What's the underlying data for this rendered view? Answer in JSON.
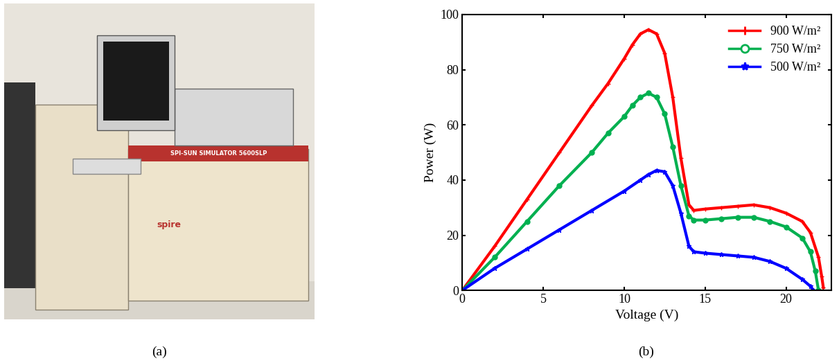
{
  "panel_labels": [
    "(a)",
    "(b)"
  ],
  "photo": {
    "texts": [
      "SPI-SUN SIMULATOR 5600SLP",
      "spire"
    ]
  },
  "chart_data": {
    "type": "line",
    "x_label": "Voltage (V)",
    "y_label": "Power (W)",
    "xlim": [
      0,
      22.8
    ],
    "xticks": [
      0,
      5,
      10,
      15,
      20
    ],
    "ylim": [
      0,
      100
    ],
    "yticks": [
      0,
      20,
      40,
      60,
      80,
      100
    ],
    "legend": "upper right",
    "grid": false,
    "series": [
      {
        "name": "900 W/m²",
        "color": "#ff0000",
        "marker": "plus",
        "line_style": "solid",
        "x": [
          0,
          2,
          4,
          6,
          8,
          9,
          10,
          10.5,
          11,
          11.5,
          12,
          12.5,
          13,
          13.5,
          14,
          14.3,
          15,
          16,
          17,
          18,
          19,
          20,
          21,
          21.5,
          22,
          22.2,
          22.3
        ],
        "values": [
          0,
          16,
          33,
          50,
          67,
          75,
          84,
          89,
          93,
          94.5,
          93,
          86,
          70,
          48,
          31,
          29,
          29.5,
          30,
          30.5,
          31,
          30,
          28,
          25,
          21,
          12,
          5,
          1
        ]
      },
      {
        "name": "750 W/m²",
        "color": "#00b050",
        "marker": "circle",
        "line_style": "solid",
        "x": [
          0,
          2,
          4,
          6,
          8,
          9,
          10,
          10.5,
          11,
          11.5,
          12,
          12.5,
          13,
          13.5,
          14,
          14.3,
          15,
          16,
          17,
          18,
          19,
          20,
          21,
          21.5,
          21.8,
          22
        ],
        "values": [
          0,
          12,
          25,
          38,
          50,
          57,
          63,
          67,
          70,
          71.5,
          70,
          64,
          52,
          38,
          27,
          25.5,
          25.5,
          26,
          26.5,
          26.5,
          25,
          23,
          19,
          14,
          7,
          0
        ]
      },
      {
        "name": "500 W/m²",
        "color": "#0000ff",
        "marker": "star",
        "line_style": "solid",
        "x": [
          0,
          2,
          4,
          6,
          8,
          10,
          11,
          11.5,
          12,
          12.5,
          13,
          13.5,
          14,
          14.3,
          15,
          16,
          17,
          18,
          19,
          20,
          21,
          21.5,
          21.7
        ],
        "values": [
          0,
          8,
          15,
          22,
          29,
          36,
          40,
          42,
          43.5,
          43,
          38,
          28,
          16,
          14,
          13.5,
          13,
          12.5,
          12,
          10.5,
          8,
          4,
          1.5,
          0
        ]
      }
    ]
  }
}
